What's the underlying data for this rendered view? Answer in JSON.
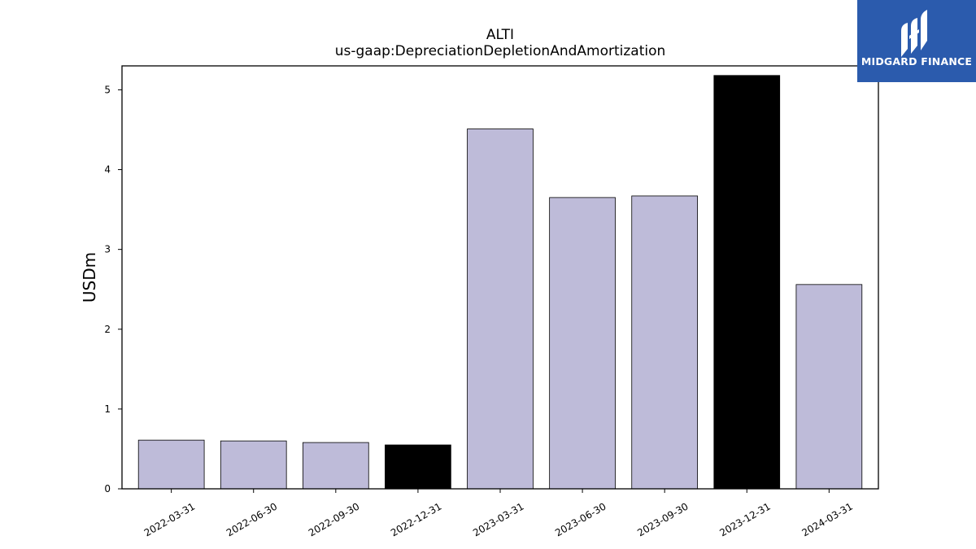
{
  "chart_data": {
    "type": "bar",
    "title": "ALTI",
    "subtitle": "us-gaap:DepreciationDepletionAndAmortization",
    "xlabel": "",
    "ylabel": "USDm",
    "ylim": [
      0,
      5.3
    ],
    "yticks": [
      "0",
      "1",
      "2",
      "3",
      "4",
      "5"
    ],
    "categories": [
      "2022-03-31",
      "2022-06-30",
      "2022-09-30",
      "2022-12-31",
      "2023-03-31",
      "2023-06-30",
      "2023-09-30",
      "2023-12-31",
      "2024-03-31"
    ],
    "values": [
      0.61,
      0.6,
      0.58,
      0.55,
      4.51,
      3.65,
      3.67,
      5.18,
      2.56
    ],
    "bar_colors": [
      "#bebbd9",
      "#bebbd9",
      "#bebbd9",
      "#000000",
      "#bebbd9",
      "#bebbd9",
      "#bebbd9",
      "#000000",
      "#bebbd9"
    ],
    "grid": false,
    "legend": "none"
  },
  "logo": {
    "text": "MIDGARD FINANCE",
    "background": "#2b5bad",
    "icon": "midgard-logo-icon"
  }
}
